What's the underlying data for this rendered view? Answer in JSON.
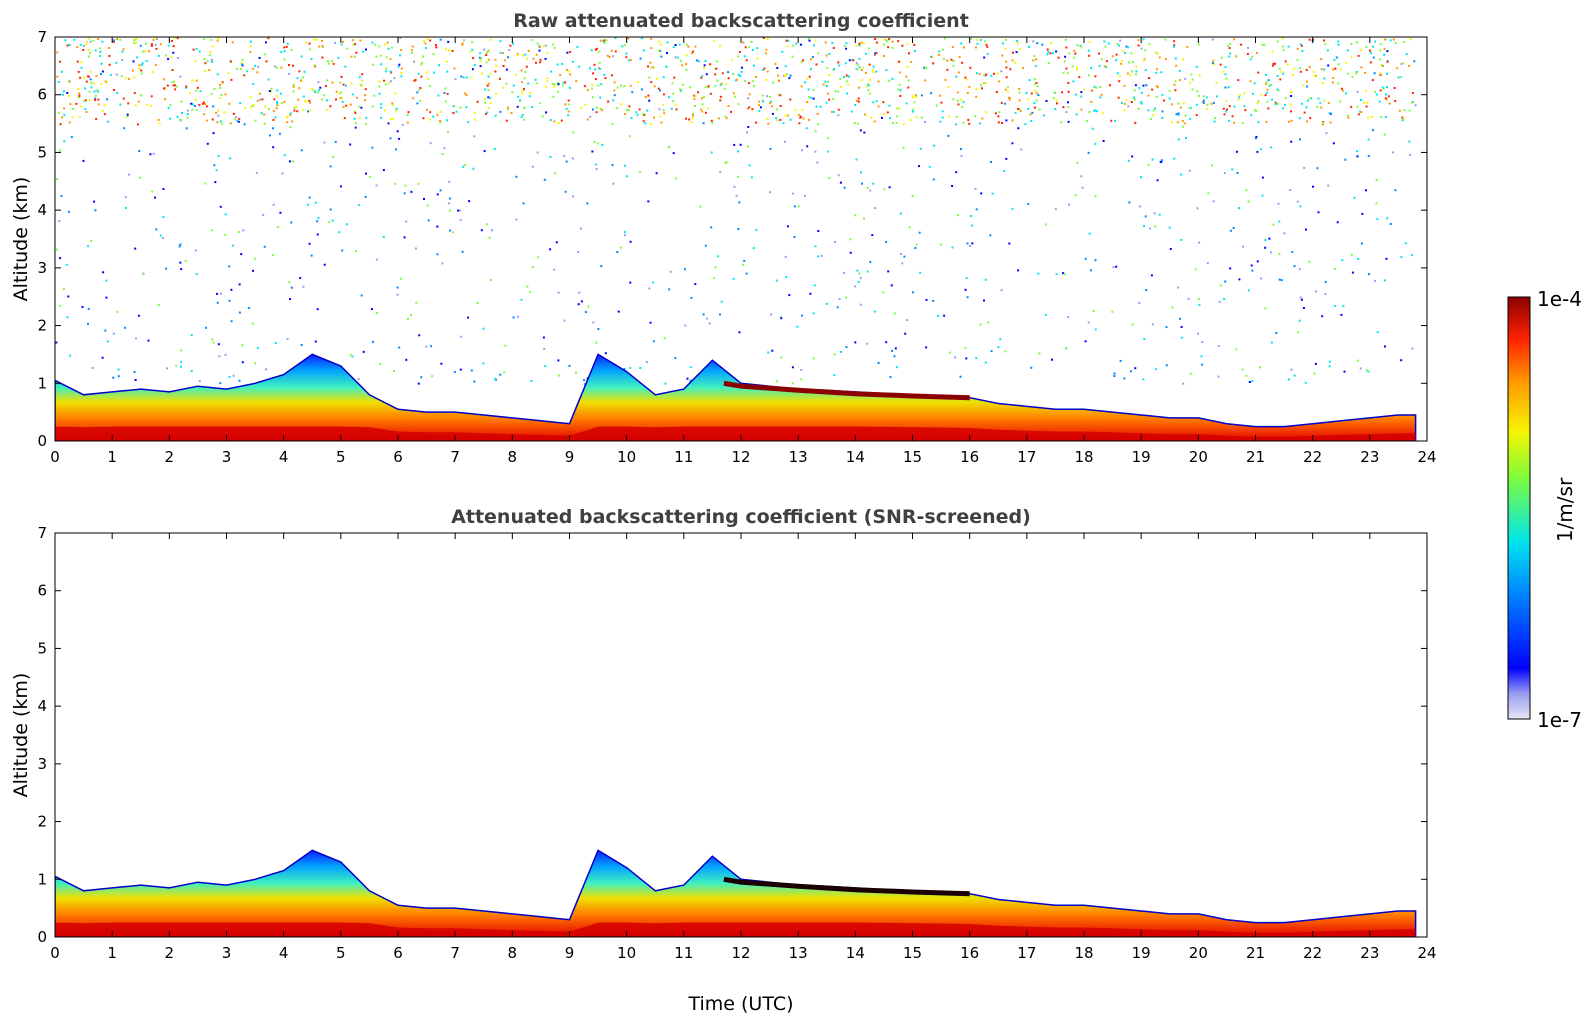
{
  "chart_data": [
    {
      "type": "heatmap",
      "title": "Raw attenuated backscattering coefficient",
      "xlabel": "",
      "ylabel": "Altitude (km)",
      "xlim": [
        0,
        24
      ],
      "ylim": [
        0,
        7
      ],
      "xticks": [
        "0",
        "1",
        "2",
        "3",
        "4",
        "5",
        "6",
        "7",
        "8",
        "9",
        "10",
        "11",
        "12",
        "13",
        "14",
        "15",
        "16",
        "17",
        "18",
        "19",
        "20",
        "21",
        "22",
        "23",
        "24"
      ],
      "yticks": [
        "0",
        "1",
        "2",
        "3",
        "4",
        "5",
        "6",
        "7"
      ],
      "noise_field": {
        "noisy_from_km": 1.0,
        "dense_above_km": 5.5,
        "description": "speckled noise up to 7 km"
      },
      "boundary_layer_top_km": {
        "x": [
          0,
          0.5,
          1,
          1.5,
          2,
          2.5,
          3,
          3.5,
          4,
          4.5,
          5,
          5.5,
          6,
          6.5,
          7,
          7.5,
          8,
          8.5,
          9,
          9.5,
          10,
          10.5,
          11,
          11.5,
          12,
          12.5,
          13,
          13.5,
          14,
          14.5,
          15,
          15.5,
          16,
          16.5,
          17,
          17.5,
          18,
          18.5,
          19,
          19.5,
          20,
          20.5,
          21,
          21.5,
          22,
          22.5,
          23,
          23.5,
          23.8
        ],
        "y": [
          1.05,
          0.8,
          0.85,
          0.9,
          0.85,
          0.95,
          0.9,
          1.0,
          1.15,
          1.5,
          1.3,
          0.8,
          0.55,
          0.5,
          0.5,
          0.45,
          0.4,
          0.35,
          0.3,
          1.5,
          1.2,
          0.8,
          0.9,
          1.4,
          1.0,
          0.95,
          0.9,
          0.88,
          0.85,
          0.82,
          0.8,
          0.78,
          0.75,
          0.65,
          0.6,
          0.55,
          0.55,
          0.5,
          0.45,
          0.4,
          0.4,
          0.3,
          0.25,
          0.25,
          0.3,
          0.35,
          0.4,
          0.45,
          0.45
        ]
      },
      "elevated_layer_km": {
        "x": [
          11.7,
          12,
          13,
          14,
          15,
          16
        ],
        "y": [
          1.0,
          0.95,
          0.88,
          0.82,
          0.78,
          0.75
        ]
      }
    },
    {
      "type": "heatmap",
      "title": "Attenuated backscattering coefficient (SNR-screened)",
      "xlabel": "Time (UTC)",
      "ylabel": "Altitude (km)",
      "xlim": [
        0,
        24
      ],
      "ylim": [
        0,
        7
      ],
      "xticks": [
        "0",
        "1",
        "2",
        "3",
        "4",
        "5",
        "6",
        "7",
        "8",
        "9",
        "10",
        "11",
        "12",
        "13",
        "14",
        "15",
        "16",
        "17",
        "18",
        "19",
        "20",
        "21",
        "22",
        "23",
        "24"
      ],
      "yticks": [
        "0",
        "1",
        "2",
        "3",
        "4",
        "5",
        "6",
        "7"
      ],
      "noise_field": null,
      "boundary_layer_top_km": {
        "x": [
          0,
          0.5,
          1,
          1.5,
          2,
          2.5,
          3,
          3.5,
          4,
          4.5,
          5,
          5.5,
          6,
          6.5,
          7,
          7.5,
          8,
          8.5,
          9,
          9.5,
          10,
          10.5,
          11,
          11.5,
          12,
          12.5,
          13,
          13.5,
          14,
          14.5,
          15,
          15.5,
          16,
          16.5,
          17,
          17.5,
          18,
          18.5,
          19,
          19.5,
          20,
          20.5,
          21,
          21.5,
          22,
          22.5,
          23,
          23.5,
          23.8
        ],
        "y": [
          1.05,
          0.8,
          0.85,
          0.9,
          0.85,
          0.95,
          0.9,
          1.0,
          1.15,
          1.5,
          1.3,
          0.8,
          0.55,
          0.5,
          0.5,
          0.45,
          0.4,
          0.35,
          0.3,
          1.5,
          1.2,
          0.8,
          0.9,
          1.4,
          1.0,
          0.95,
          0.9,
          0.88,
          0.85,
          0.82,
          0.8,
          0.78,
          0.75,
          0.65,
          0.6,
          0.55,
          0.55,
          0.5,
          0.45,
          0.4,
          0.4,
          0.3,
          0.25,
          0.25,
          0.3,
          0.35,
          0.4,
          0.45,
          0.45
        ]
      },
      "elevated_layer_km": {
        "x": [
          11.7,
          12,
          13,
          14,
          15,
          16
        ],
        "y": [
          1.0,
          0.95,
          0.88,
          0.82,
          0.78,
          0.75
        ]
      }
    }
  ],
  "colorbar": {
    "label": "1/m/sr",
    "max_label": "1e-4",
    "min_label": "1e-7",
    "scale": "log",
    "colors": [
      "#e6e6f5",
      "#9a9cf0",
      "#0000ff",
      "#0088ff",
      "#00e5ee",
      "#7cfc3c",
      "#f5f500",
      "#ff9900",
      "#ff2200",
      "#8b0000"
    ]
  }
}
